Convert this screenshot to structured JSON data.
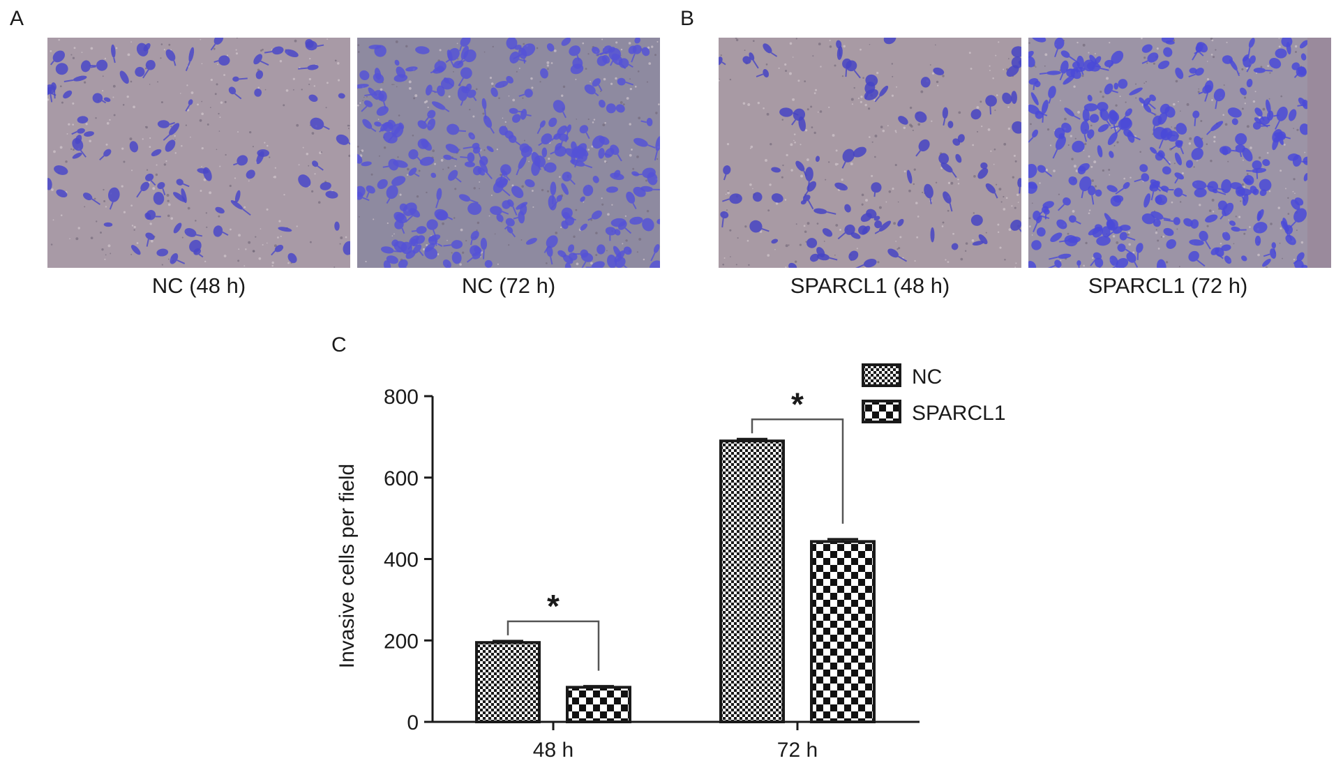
{
  "panels": {
    "a": {
      "letter": "A",
      "images": [
        {
          "caption": "NC (48 h)",
          "density": "sparse",
          "background": "#a89aa6",
          "cell_color": "#4a48c8"
        },
        {
          "caption": "NC (72 h)",
          "density": "dense",
          "background": "#8e8aa0",
          "cell_color": "#5552d6"
        }
      ]
    },
    "b": {
      "letter": "B",
      "images": [
        {
          "caption": "SPARCL1 (48 h)",
          "density": "sparse",
          "background": "#a89aa4",
          "cell_color": "#4744c4"
        },
        {
          "caption": "SPARCL1 (72 h)",
          "density": "dense",
          "background": "#9c94a6",
          "cell_color": "#4a4ad8"
        }
      ]
    },
    "c": {
      "letter": "C"
    }
  },
  "chart_data": {
    "type": "bar",
    "categories": [
      "48 h",
      "72 h"
    ],
    "series": [
      {
        "name": "NC",
        "values": [
          195,
          690
        ],
        "errors": [
          4,
          5
        ],
        "pattern": "fine-checker"
      },
      {
        "name": "SPARCL1",
        "values": [
          85,
          443
        ],
        "errors": [
          3,
          6
        ],
        "pattern": "coarse-checker"
      }
    ],
    "ylabel": "Invasive cells per field",
    "xlabel": "",
    "ylim": [
      0,
      800
    ],
    "yticks": [
      0,
      200,
      400,
      600,
      800
    ],
    "significance": [
      {
        "category": "48 h",
        "label": "*"
      },
      {
        "category": "72 h",
        "label": "*"
      }
    ],
    "legend_position": "top-right",
    "grid": false
  }
}
